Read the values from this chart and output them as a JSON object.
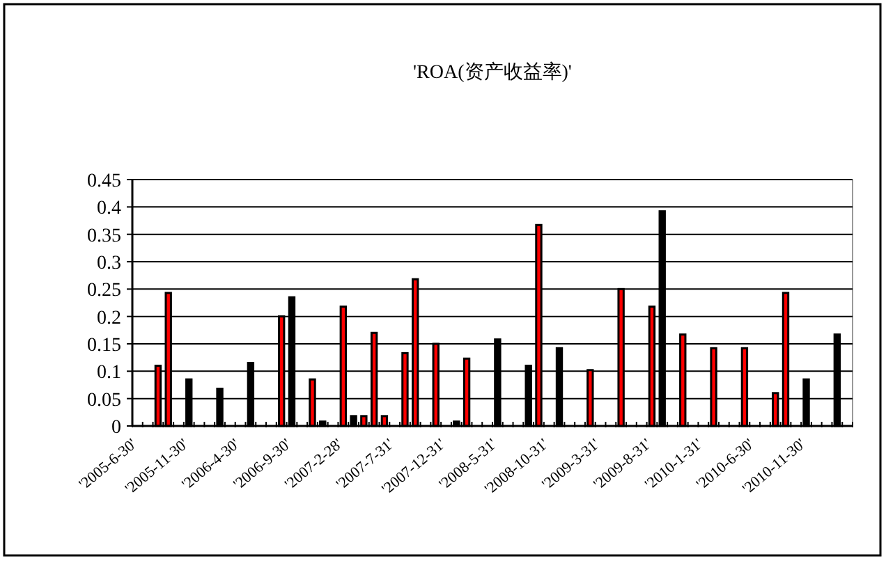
{
  "chart_data": {
    "type": "bar",
    "title": "'ROA(资产收益率)'",
    "categories": [
      "'2005-6-30'",
      null,
      null,
      null,
      null,
      "'2005-11-30'",
      null,
      null,
      null,
      null,
      "'2006-4-30'",
      null,
      null,
      null,
      null,
      "'2006-9-30'",
      null,
      null,
      null,
      null,
      "'2007-2-28'",
      null,
      null,
      null,
      null,
      "'2007-7-31'",
      null,
      null,
      null,
      null,
      "'2007-12-31'",
      null,
      null,
      null,
      null,
      "'2008-5-31'",
      null,
      null,
      null,
      null,
      "'2008-10-31'",
      null,
      null,
      null,
      null,
      "'2009-3-31'",
      null,
      null,
      null,
      null,
      "'2009-8-31'",
      null,
      null,
      null,
      null,
      "'2010-1-31'",
      null,
      null,
      null,
      null,
      "'2010-6-30'",
      null,
      null,
      null,
      null,
      "'2010-11-30'",
      null,
      null,
      null,
      null
    ],
    "values": [
      null,
      null,
      0.11,
      0.243,
      null,
      0.085,
      null,
      null,
      0.068,
      null,
      null,
      0.115,
      null,
      null,
      0.2,
      0.235,
      null,
      0.085,
      0.008,
      null,
      0.218,
      0.018,
      0.018,
      0.17,
      0.018,
      null,
      0.133,
      0.268,
      null,
      0.15,
      null,
      0.008,
      0.123,
      null,
      null,
      0.158,
      null,
      null,
      0.11,
      0.367,
      null,
      0.142,
      null,
      null,
      0.102,
      null,
      null,
      0.25,
      null,
      null,
      0.218,
      0.392,
      null,
      0.167,
      null,
      null,
      0.142,
      null,
      null,
      0.142,
      null,
      null,
      0.06,
      0.243,
      null,
      0.085,
      null,
      null,
      0.167,
      null
    ],
    "colors": [
      null,
      null,
      "#ff0000",
      "#ff0000",
      null,
      "#000000",
      null,
      null,
      "#000000",
      null,
      null,
      "#000000",
      null,
      null,
      "#ff0000",
      "#000000",
      null,
      "#ff0000",
      "#000000",
      null,
      "#ff0000",
      "#000000",
      "#ff0000",
      "#ff0000",
      "#ff0000",
      null,
      "#ff0000",
      "#ff0000",
      null,
      "#ff0000",
      null,
      "#000000",
      "#ff0000",
      null,
      null,
      "#000000",
      null,
      null,
      "#000000",
      "#ff0000",
      null,
      "#000000",
      null,
      null,
      "#ff0000",
      null,
      null,
      "#ff0000",
      null,
      null,
      "#ff0000",
      "#000000",
      null,
      "#ff0000",
      null,
      null,
      "#ff0000",
      null,
      null,
      "#ff0000",
      null,
      null,
      "#ff0000",
      "#ff0000",
      null,
      "#000000",
      null,
      null,
      "#000000",
      null
    ],
    "ylim": [
      0,
      0.45
    ],
    "yticks": [
      0,
      0.05,
      0.1,
      0.15,
      0.2,
      0.25,
      0.3,
      0.35,
      0.4,
      0.45
    ],
    "grid": "y"
  }
}
